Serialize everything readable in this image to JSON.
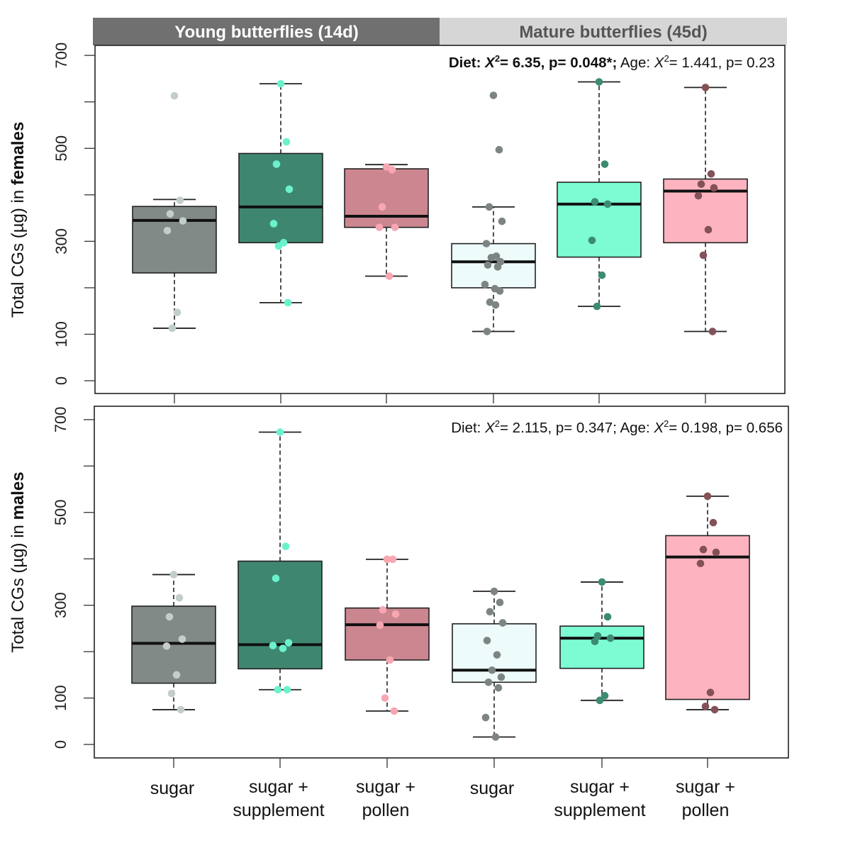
{
  "strips": [
    {
      "label": "Young butterflies (14d)",
      "bg": "#707070",
      "fg": "#ffffff"
    },
    {
      "label": "Mature butterflies (45d)",
      "bg": "#d6d6d6",
      "fg": "#555555"
    }
  ],
  "x_categories": [
    {
      "line1": "sugar",
      "line2": ""
    },
    {
      "line1": "sugar +",
      "line2": "supplement"
    },
    {
      "line1": "sugar +",
      "line2": "pollen"
    },
    {
      "line1": "sugar",
      "line2": ""
    },
    {
      "line1": "sugar +",
      "line2": "supplement"
    },
    {
      "line1": "sugar +",
      "line2": "pollen"
    }
  ],
  "chart_data": [
    {
      "type": "box",
      "panel": "females",
      "ylabel_prefix": "Total CGs (µg) in ",
      "ylabel_bold": "females",
      "yticks": [
        "0",
        "100",
        "300",
        "500",
        "700"
      ],
      "ylim": [
        -30,
        725
      ],
      "annotation": {
        "diet_label": "Diet: ",
        "diet_chi": "X",
        "diet_sup": "2",
        "diet_stats": "= 6.35, p= 0.048*;",
        "age_label": " Age: ",
        "age_chi": "X",
        "age_sup": "2",
        "age_stats": "= 1.441, p= 0.23"
      },
      "series": [
        {
          "box_color": "#828a87",
          "point_color": "#c3cdca",
          "whisker_low": 113,
          "q1": 232,
          "median": 345,
          "q3": 375,
          "whisker_high": 390,
          "points": [
            613,
            388,
            359,
            344,
            323,
            147,
            113
          ]
        },
        {
          "box_color": "#3f8670",
          "point_color": "#6af2cd",
          "whisker_low": 168,
          "q1": 297,
          "median": 374,
          "q3": 489,
          "whisker_high": 639,
          "points": [
            639,
            514,
            466,
            412,
            338,
            297,
            290,
            168
          ]
        },
        {
          "box_color": "#cb8690",
          "point_color": "#f8a7b2",
          "whisker_low": 225,
          "q1": 330,
          "median": 354,
          "q3": 456,
          "whisker_high": 465,
          "points": [
            460,
            454,
            374,
            330,
            330,
            225
          ]
        },
        {
          "box_color": "#eefbfb",
          "point_color": "#7d8582",
          "whisker_low": 106,
          "q1": 200,
          "median": 256,
          "q3": 295,
          "whisker_high": 374,
          "points": [
            614,
            497,
            374,
            343,
            295,
            268,
            265,
            256,
            249,
            245,
            207,
            198,
            193,
            169,
            163,
            106
          ]
        },
        {
          "box_color": "#7dfcd4",
          "point_color": "#3c8b72",
          "whisker_low": 160,
          "q1": 266,
          "median": 380,
          "q3": 427,
          "whisker_high": 643,
          "points": [
            643,
            466,
            385,
            380,
            302,
            227,
            160
          ]
        },
        {
          "box_color": "#fdb4c0",
          "point_color": "#835258",
          "whisker_low": 106,
          "q1": 297,
          "median": 408,
          "q3": 434,
          "whisker_high": 631,
          "points": [
            631,
            445,
            423,
            415,
            398,
            325,
            270,
            106
          ]
        }
      ]
    },
    {
      "type": "box",
      "panel": "males",
      "ylabel_prefix": "Total CGs (µg) in ",
      "ylabel_bold": "males",
      "yticks": [
        "0",
        "100",
        "300",
        "500",
        "700"
      ],
      "ylim": [
        -30,
        730
      ],
      "annotation": {
        "diet_label": "Diet: ",
        "diet_chi": "X",
        "diet_sup": "2",
        "diet_stats": "= 2.115, p= 0.347;",
        "age_label": " Age: ",
        "age_chi": "X",
        "age_sup": "2",
        "age_stats": "= 0.198, p= 0.656"
      },
      "series": [
        {
          "box_color": "#828a87",
          "point_color": "#c3cdca",
          "whisker_low": 75,
          "q1": 132,
          "median": 218,
          "q3": 298,
          "whisker_high": 366,
          "points": [
            366,
            316,
            275,
            227,
            212,
            150,
            110,
            75
          ]
        },
        {
          "box_color": "#3f8670",
          "point_color": "#6af2cd",
          "whisker_low": 118,
          "q1": 163,
          "median": 215,
          "q3": 395,
          "whisker_high": 673,
          "points": [
            673,
            427,
            358,
            219,
            213,
            207,
            118,
            118
          ]
        },
        {
          "box_color": "#cb8690",
          "point_color": "#f8a7b2",
          "whisker_low": 72,
          "q1": 182,
          "median": 258,
          "q3": 294,
          "whisker_high": 399,
          "points": [
            399,
            399,
            290,
            281,
            257,
            182,
            100,
            72
          ]
        },
        {
          "box_color": "#eefbfb",
          "point_color": "#7d8582",
          "whisker_low": 16,
          "q1": 134,
          "median": 160,
          "q3": 260,
          "whisker_high": 330,
          "points": [
            330,
            306,
            286,
            262,
            224,
            193,
            160,
            145,
            134,
            122,
            58,
            16
          ]
        },
        {
          "box_color": "#7dfcd4",
          "point_color": "#3c8b72",
          "whisker_low": 95,
          "q1": 164,
          "median": 229,
          "q3": 255,
          "whisker_high": 350,
          "points": [
            350,
            275,
            234,
            229,
            222,
            105,
            95
          ]
        },
        {
          "box_color": "#fdb4c0",
          "point_color": "#835258",
          "whisker_low": 75,
          "q1": 97,
          "median": 404,
          "q3": 450,
          "whisker_high": 535,
          "points": [
            535,
            478,
            420,
            414,
            390,
            112,
            82,
            75
          ]
        }
      ]
    }
  ]
}
